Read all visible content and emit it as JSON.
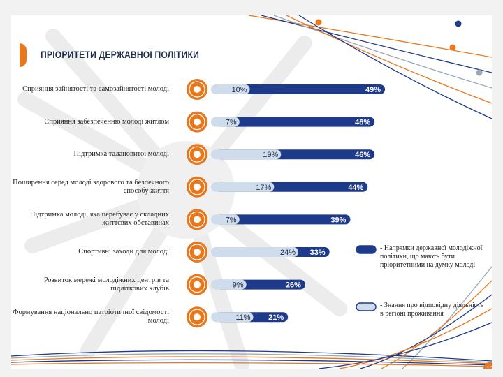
{
  "page": {
    "title": "ПРІОРИТЕТИ ДЕРЖАВНОЇ ПОЛІТИКИ",
    "page_number": "12",
    "colors": {
      "accent": "#e8781e",
      "dark_bar": "#1e3a8a",
      "light_bar": "#cfdcec",
      "ink": "#1f2d4a"
    }
  },
  "chart_data": {
    "type": "bar",
    "orientation": "horizontal",
    "categories": [
      "Сприяння зайнятості та самозайнятості молоді",
      "Сприяння забезпеченню молоді житлом",
      "Підтримка талановитої молоді",
      "Поширення серед молоді здорового та безпечного способу життя",
      "Підтримка молоді, яка перебуває у складних життєвих обставинах",
      "Спортивні заходи для молоді",
      "Розвиток мережі молодіжних центрів та підліткових клубів",
      "Формування національно патріотичної свідомості молоді"
    ],
    "icons": [
      "handshake-icon",
      "house-icon",
      "award-icon",
      "heart-hands-icon",
      "umbrella-icon",
      "dumbbell-icon",
      "building-icon",
      "trident-icon"
    ],
    "series": [
      {
        "name": "- Напрямки державної молодіжної політики, що мають бути пріоритетними на думку молоді",
        "color": "#1e3a8a",
        "values": [
          49,
          46,
          46,
          44,
          39,
          33,
          26,
          21
        ],
        "labels": [
          "49%",
          "46%",
          "46%",
          "44%",
          "39%",
          "33%",
          "26%",
          "21%"
        ]
      },
      {
        "name": "- Знання про відповідну діяльність в регіоні проживання",
        "color": "#cfdcec",
        "values": [
          10,
          7,
          19,
          17,
          7,
          24,
          9,
          11
        ],
        "labels": [
          "10%",
          "7%",
          "19%",
          "17%",
          "7%",
          "24%",
          "9%",
          "11%"
        ]
      }
    ],
    "legend_position": "right",
    "grid": false
  }
}
